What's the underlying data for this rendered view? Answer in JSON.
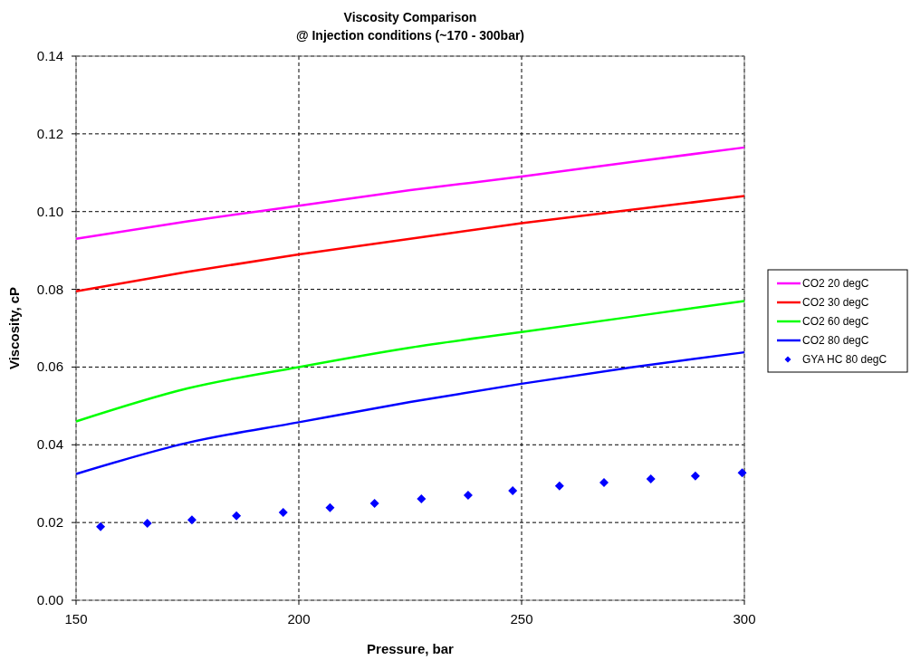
{
  "chart_data": {
    "type": "line",
    "title": "Viscosity Comparison",
    "subtitle": "@ Injection conditions (~170  - 300bar)",
    "xlabel": "Pressure, bar",
    "ylabel": "Viscosity, cP",
    "x": [
      150,
      175,
      200,
      225,
      250,
      275,
      300
    ],
    "xlim": [
      150,
      300
    ],
    "xticks": [
      150,
      200,
      250,
      300
    ],
    "ylim": [
      0,
      0.14
    ],
    "yticks": [
      {
        "value": 0,
        "label": "0.00"
      },
      {
        "value": 0.02,
        "label": "0.02"
      },
      {
        "value": 0.04,
        "label": "0.04"
      },
      {
        "value": 0.06,
        "label": "0.06"
      },
      {
        "value": 0.08,
        "label": "0.08"
      },
      {
        "value": 0.1,
        "label": "0.10"
      },
      {
        "value": 0.12,
        "label": "0.12"
      },
      {
        "value": 0.14,
        "label": "0.14"
      }
    ],
    "grid": true,
    "legend": "right",
    "line_style": "solid",
    "series": [
      {
        "name": "CO2 20 degC",
        "color": "#ff00ff",
        "values": [
          0.093,
          0.0975,
          0.1015,
          0.1055,
          0.109,
          0.1128,
          0.1165
        ]
      },
      {
        "name": "CO2 30 degC",
        "color": "#ff0000",
        "values": [
          0.0795,
          0.0845,
          0.089,
          0.093,
          0.097,
          0.1005,
          0.104
        ]
      },
      {
        "name": "CO2 60 degC",
        "color": "#00ff00",
        "values": [
          0.046,
          0.0545,
          0.06,
          0.065,
          0.069,
          0.073,
          0.077
        ]
      },
      {
        "name": "CO2 80 degC",
        "color": "#0000ff",
        "values": [
          0.0325,
          0.0405,
          0.0458,
          0.051,
          0.0557,
          0.06,
          0.0638
        ]
      },
      {
        "name": "GYA HC 80 degC",
        "type": "scatter",
        "marker": "diamond",
        "color": "#0000ff",
        "x": [
          155.5,
          166,
          176,
          186,
          196.5,
          207,
          217,
          227.5,
          238,
          248,
          258.5,
          268.5,
          279,
          289,
          299.5
        ],
        "values": [
          0.0189,
          0.0198,
          0.0207,
          0.0217,
          0.0226,
          0.0238,
          0.0249,
          0.0261,
          0.027,
          0.0282,
          0.0294,
          0.0303,
          0.0312,
          0.032,
          0.0328
        ]
      }
    ]
  }
}
